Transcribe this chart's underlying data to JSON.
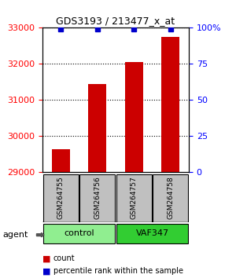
{
  "title": "GDS3193 / 213477_x_at",
  "samples": [
    "GSM264755",
    "GSM264756",
    "GSM264757",
    "GSM264758"
  ],
  "counts": [
    29650,
    31450,
    32050,
    32750
  ],
  "percentile_ranks": [
    99,
    99,
    99,
    99
  ],
  "groups": [
    "control",
    "control",
    "VAF347",
    "VAF347"
  ],
  "group_colors": [
    "#90EE90",
    "#90EE90",
    "#32CD32",
    "#32CD32"
  ],
  "bar_color": "#CC0000",
  "percentile_color": "#0000CC",
  "ylim_left": [
    29000,
    33000
  ],
  "ylim_right": [
    0,
    100
  ],
  "yticks_left": [
    29000,
    30000,
    31000,
    32000,
    33000
  ],
  "yticks_right": [
    0,
    25,
    50,
    75,
    100
  ],
  "ytick_labels_right": [
    "0",
    "25",
    "50",
    "75",
    "100%"
  ],
  "grid_color": "#000000",
  "background_color": "#ffffff",
  "sample_box_color": "#C0C0C0",
  "legend_count_color": "#CC0000",
  "legend_pct_color": "#0000CC"
}
